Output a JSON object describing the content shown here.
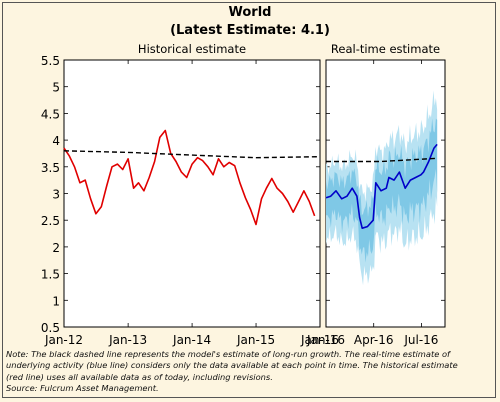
{
  "chart_data": {
    "type": "line",
    "title": "World",
    "subtitle": "(Latest Estimate: 4.1)",
    "y_range": [
      0.5,
      5.5
    ],
    "y_ticks": [
      "5.5",
      "5",
      "4.5",
      "4",
      "3.5",
      "3",
      "2.5",
      "2",
      "1.5",
      "1",
      "0.5"
    ],
    "panels": [
      {
        "title": "Historical estimate",
        "x_range": [
          "2012-01",
          "2016-01"
        ],
        "x_ticks": [
          "Jan-12",
          "Jan-13",
          "Jan-14",
          "Jan-15",
          "Jan-16"
        ],
        "series": [
          {
            "color": "#e00000",
            "style": "solid",
            "points": [
              [
                "2012-01",
                3.85
              ],
              [
                "2012-02",
                3.7
              ],
              [
                "2012-03",
                3.5
              ],
              [
                "2012-04",
                3.2
              ],
              [
                "2012-05",
                3.25
              ],
              [
                "2012-06",
                2.9
              ],
              [
                "2012-07",
                2.62
              ],
              [
                "2012-08",
                2.75
              ],
              [
                "2012-09",
                3.15
              ],
              [
                "2012-10",
                3.5
              ],
              [
                "2012-11",
                3.55
              ],
              [
                "2012-12",
                3.45
              ],
              [
                "2013-01",
                3.65
              ],
              [
                "2013-02",
                3.1
              ],
              [
                "2013-03",
                3.2
              ],
              [
                "2013-04",
                3.05
              ],
              [
                "2013-05",
                3.3
              ],
              [
                "2013-06",
                3.6
              ],
              [
                "2013-07",
                4.05
              ],
              [
                "2013-08",
                4.18
              ],
              [
                "2013-09",
                3.75
              ],
              [
                "2013-10",
                3.6
              ],
              [
                "2013-11",
                3.4
              ],
              [
                "2013-12",
                3.3
              ],
              [
                "2014-01",
                3.55
              ],
              [
                "2014-02",
                3.67
              ],
              [
                "2014-03",
                3.62
              ],
              [
                "2014-04",
                3.5
              ],
              [
                "2014-05",
                3.35
              ],
              [
                "2014-06",
                3.65
              ],
              [
                "2014-07",
                3.5
              ],
              [
                "2014-08",
                3.58
              ],
              [
                "2014-09",
                3.52
              ],
              [
                "2014-10",
                3.2
              ],
              [
                "2014-11",
                2.92
              ],
              [
                "2014-12",
                2.7
              ],
              [
                "2015-01",
                2.42
              ],
              [
                "2015-02",
                2.9
              ],
              [
                "2015-03",
                3.1
              ],
              [
                "2015-04",
                3.28
              ],
              [
                "2015-05",
                3.1
              ],
              [
                "2015-06",
                3.0
              ],
              [
                "2015-07",
                2.85
              ],
              [
                "2015-08",
                2.65
              ],
              [
                "2015-09",
                2.85
              ],
              [
                "2015-10",
                3.05
              ],
              [
                "2015-11",
                2.85
              ],
              [
                "2015-12",
                2.58
              ]
            ]
          },
          {
            "color": "#000000",
            "style": "dashed",
            "points": [
              [
                "2012-01",
                3.8
              ],
              [
                "2013-01",
                3.77
              ],
              [
                "2014-01",
                3.72
              ],
              [
                "2015-01",
                3.67
              ],
              [
                "2016-01",
                3.69
              ]
            ]
          }
        ]
      },
      {
        "title": "Real-time estimate",
        "x_range": [
          "2016-01-01",
          "2016-08-15"
        ],
        "x_ticks": [
          "Jan-16",
          "Apr-16",
          "Jul-16"
        ],
        "band_colors": [
          "#b8e2f2",
          "#7fc8e6"
        ],
        "series": [
          {
            "color": "#0000c8",
            "style": "solid",
            "points": [
              [
                "2016-01-01",
                2.92
              ],
              [
                "2016-01-10",
                2.95
              ],
              [
                "2016-01-20",
                3.05
              ],
              [
                "2016-01-31",
                2.9
              ],
              [
                "2016-02-10",
                2.95
              ],
              [
                "2016-02-20",
                3.1
              ],
              [
                "2016-02-29",
                2.95
              ],
              [
                "2016-03-05",
                2.55
              ],
              [
                "2016-03-10",
                2.35
              ],
              [
                "2016-03-20",
                2.38
              ],
              [
                "2016-03-31",
                2.5
              ],
              [
                "2016-04-05",
                3.2
              ],
              [
                "2016-04-15",
                3.05
              ],
              [
                "2016-04-25",
                3.1
              ],
              [
                "2016-04-30",
                3.3
              ],
              [
                "2016-05-10",
                3.25
              ],
              [
                "2016-05-20",
                3.4
              ],
              [
                "2016-05-31",
                3.1
              ],
              [
                "2016-06-10",
                3.25
              ],
              [
                "2016-06-20",
                3.3
              ],
              [
                "2016-06-30",
                3.35
              ],
              [
                "2016-07-05",
                3.4
              ],
              [
                "2016-07-15",
                3.6
              ],
              [
                "2016-07-25",
                3.85
              ],
              [
                "2016-07-31",
                3.92
              ]
            ]
          },
          {
            "color": "#000000",
            "style": "dashed",
            "points": [
              [
                "2016-01-01",
                3.6
              ],
              [
                "2016-04-15",
                3.6
              ],
              [
                "2016-07-31",
                3.66
              ]
            ]
          }
        ]
      }
    ]
  },
  "notes": [
    "Note: The black dashed line represents the model's estimate of long-run growth. The real-time estimate of",
    "underlying activity (blue line) considers only the data available at each point in time. The historical estimate",
    "(red line) uses all available data as of today, including revisions.",
    "Source: Fulcrum Asset Management."
  ]
}
